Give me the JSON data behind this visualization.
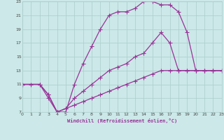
{
  "xlabel": "Windchill (Refroidissement éolien,°C)",
  "xlim": [
    0,
    23
  ],
  "ylim": [
    7,
    23
  ],
  "xticks": [
    0,
    1,
    2,
    3,
    4,
    5,
    6,
    7,
    8,
    9,
    10,
    11,
    12,
    13,
    14,
    15,
    16,
    17,
    18,
    19,
    20,
    21,
    22,
    23
  ],
  "yticks": [
    7,
    9,
    11,
    13,
    15,
    17,
    19,
    21,
    23
  ],
  "background_color": "#cce8e8",
  "grid_color": "#aacccc",
  "line_color": "#993399",
  "line_width": 0.9,
  "marker": "+",
  "marker_size": 4,
  "curve1_x": [
    0,
    1,
    2,
    3,
    4,
    5,
    6,
    7,
    8,
    9,
    10,
    11,
    12,
    13,
    14,
    15,
    16,
    17,
    18,
    19,
    20,
    21,
    22,
    23
  ],
  "curve1_y": [
    11,
    11,
    11,
    9,
    7,
    7,
    11,
    14,
    16.5,
    19,
    21,
    21.5,
    21.5,
    22,
    23,
    23,
    22.5,
    22.5,
    21.5,
    18.5,
    13,
    13,
    13,
    13
  ],
  "curve2_x": [
    0,
    2,
    3,
    4,
    5,
    6,
    7,
    8,
    9,
    10,
    11,
    12,
    13,
    14,
    15,
    16,
    17,
    18,
    19,
    20,
    21,
    22,
    23
  ],
  "curve2_y": [
    11,
    11,
    9.5,
    7,
    7.5,
    9,
    10,
    11,
    12,
    13,
    13.5,
    14,
    15,
    15.5,
    17,
    18.5,
    17,
    13,
    13,
    13,
    13,
    13,
    13
  ],
  "curve3_x": [
    0,
    2,
    3,
    4,
    5,
    6,
    7,
    8,
    9,
    10,
    11,
    12,
    13,
    14,
    15,
    16,
    17,
    18,
    19,
    20,
    21,
    22,
    23
  ],
  "curve3_y": [
    11,
    11,
    9.5,
    7,
    7.5,
    8,
    8.5,
    9,
    9.5,
    10,
    10.5,
    11,
    11.5,
    12,
    12.5,
    13,
    13,
    13,
    13,
    13,
    13,
    13,
    13
  ]
}
